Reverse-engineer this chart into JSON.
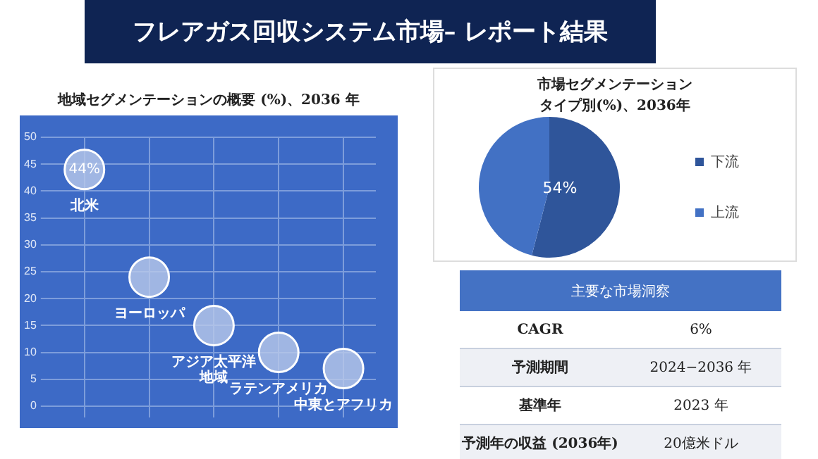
{
  "chart_data": [
    {
      "type": "other",
      "title": "フレアガス回収システム市場– レポート結果"
    },
    {
      "type": "scatter",
      "title": "地域セグメンテーションの概要 (%)、2036 年",
      "categories": [
        null,
        null,
        null,
        null,
        null
      ],
      "series": [
        {
          "color": "#b9c9ea",
          "values": [
            44,
            24,
            15,
            10,
            7
          ],
          "value_labels": [
            "44%",
            null,
            null,
            null,
            null
          ]
        }
      ],
      "ylim": [
        0,
        50
      ],
      "yticks": [
        0,
        5,
        10,
        15,
        20,
        25,
        30,
        35,
        40,
        45,
        50
      ],
      "grid": true,
      "marker": "circle",
      "tick_labels": "y",
      "annotations": [
        {
          "text": "北米",
          "y": 44
        },
        {
          "text": "ヨーロッパ",
          "y": 24
        },
        {
          "text": "アジア太平洋地域",
          "y": 15
        },
        {
          "text": "ラテンアメリカ",
          "y": 10
        },
        {
          "text": "中東とアフリカ",
          "y": 7
        }
      ]
    },
    {
      "type": "pie",
      "title": "市場セグメンテーションタイプ別(%)、2036年",
      "categories": [
        "下流",
        "上流"
      ],
      "values": [
        54,
        46
      ],
      "colors": [
        "#2f559a",
        "#4271c4"
      ],
      "value_labels": [
        "54%",
        null
      ],
      "legend": "right"
    },
    {
      "type": "other",
      "title": "主要な市場洞察",
      "annotations": [
        "CAGR",
        "6%",
        "予測期間",
        "2024−2036 年",
        "基準年",
        "2023 年",
        "予測年の収益 (2036年)",
        "20億米ドル"
      ]
    }
  ]
}
